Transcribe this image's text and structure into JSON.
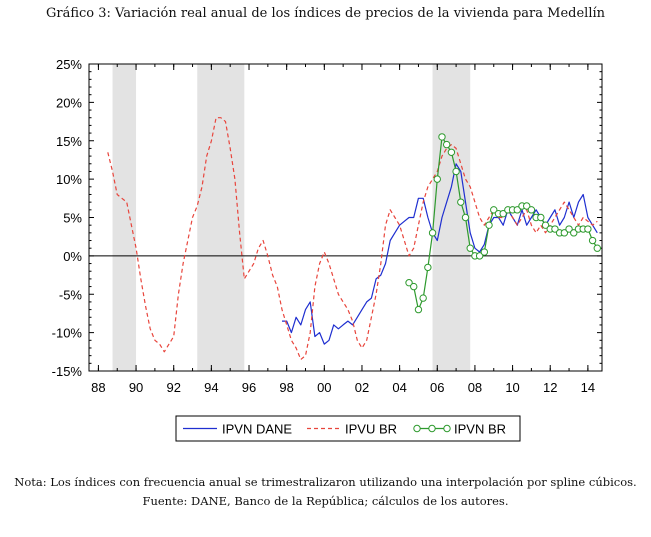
{
  "title": "Gráfico 3: Variación real anual de los índices de precios de la vivienda para Medellín",
  "note": "Nota: Los índices con frecuencia anual se trimestralizaron utilizando una interpolación por spline cúbicos.",
  "source": "Fuente: DANE, Banco de la República; cálculos de los autores.",
  "chart_data": {
    "type": "line",
    "title": "Gráfico 3: Variación real anual de los índices de precios de la vivienda para Medellín",
    "xlabel": "",
    "ylabel": "",
    "xlim": [
      1987.5,
      2014.75
    ],
    "ylim": [
      -15,
      25
    ],
    "yticks": [
      -15,
      -10,
      -5,
      0,
      5,
      10,
      15,
      20,
      25
    ],
    "ytick_labels": [
      "-15%",
      "-10%",
      "-5%",
      "0%",
      "5%",
      "10%",
      "15%",
      "20%",
      "25%"
    ],
    "xticks": [
      1988,
      1990,
      1992,
      1994,
      1996,
      1998,
      2000,
      2002,
      2004,
      2006,
      2008,
      2010,
      2012,
      2014
    ],
    "xtick_labels": [
      "88",
      "90",
      "92",
      "94",
      "96",
      "98",
      "00",
      "02",
      "04",
      "06",
      "08",
      "10",
      "12",
      "14"
    ],
    "shaded_periods": [
      [
        1988.75,
        1990.0
      ],
      [
        1993.25,
        1995.75
      ],
      [
        2005.75,
        2007.75
      ]
    ],
    "zero_line": true,
    "legend_position": "bottom-center",
    "series": [
      {
        "name": "IPVN DANE",
        "style": "solid",
        "color": "#1f2fd0",
        "x": [
          1997.75,
          1998.0,
          1998.25,
          1998.5,
          1998.75,
          1999.0,
          1999.25,
          1999.5,
          1999.75,
          2000.0,
          2000.25,
          2000.5,
          2000.75,
          2001.0,
          2001.25,
          2001.5,
          2001.75,
          2002.0,
          2002.25,
          2002.5,
          2002.75,
          2003.0,
          2003.25,
          2003.5,
          2003.75,
          2004.0,
          2004.25,
          2004.5,
          2004.75,
          2005.0,
          2005.25,
          2005.5,
          2005.75,
          2006.0,
          2006.25,
          2006.5,
          2006.75,
          2007.0,
          2007.25,
          2007.5,
          2007.75,
          2008.0,
          2008.25,
          2008.5,
          2008.75,
          2009.0,
          2009.25,
          2009.5,
          2009.75,
          2010.0,
          2010.25,
          2010.5,
          2010.75,
          2011.0,
          2011.25,
          2011.5,
          2011.75,
          2012.0,
          2012.25,
          2012.5,
          2012.75,
          2013.0,
          2013.25,
          2013.5,
          2013.75,
          2014.0,
          2014.25,
          2014.5
        ],
        "values": [
          -8.5,
          -8.5,
          -10,
          -8,
          -9,
          -7,
          -6,
          -10.5,
          -10,
          -11.5,
          -11,
          -9,
          -9.5,
          -9,
          -8.5,
          -9,
          -8,
          -7,
          -6,
          -5.5,
          -3,
          -2.5,
          -1,
          2,
          3,
          4,
          4.5,
          5,
          5,
          7.5,
          7.5,
          5,
          3,
          2,
          5,
          7,
          9,
          12,
          11,
          7,
          3,
          1,
          0.5,
          1.5,
          4,
          5,
          5,
          4,
          6,
          5,
          4,
          6,
          4,
          5,
          6,
          5,
          4,
          5,
          6,
          4,
          5,
          7,
          5,
          7,
          8,
          5,
          4,
          3
        ]
      },
      {
        "name": "IPVU BR",
        "style": "dashed",
        "color": "#e8453c",
        "x": [
          1988.5,
          1988.75,
          1989.0,
          1989.25,
          1989.5,
          1989.75,
          1990.0,
          1990.25,
          1990.5,
          1990.75,
          1991.0,
          1991.25,
          1991.5,
          1991.75,
          1992.0,
          1992.25,
          1992.5,
          1992.75,
          1993.0,
          1993.25,
          1993.5,
          1993.75,
          1994.0,
          1994.25,
          1994.5,
          1994.75,
          1995.0,
          1995.25,
          1995.5,
          1995.75,
          1996.0,
          1996.25,
          1996.5,
          1996.75,
          1997.0,
          1997.25,
          1997.5,
          1997.75,
          1998.0,
          1998.25,
          1998.5,
          1998.75,
          1999.0,
          1999.25,
          1999.5,
          1999.75,
          2000.0,
          2000.25,
          2000.5,
          2000.75,
          2001.0,
          2001.25,
          2001.5,
          2001.75,
          2002.0,
          2002.25,
          2002.5,
          2002.75,
          2003.0,
          2003.25,
          2003.5,
          2003.75,
          2004.0,
          2004.25,
          2004.5,
          2004.75,
          2005.0,
          2005.25,
          2005.5,
          2005.75,
          2006.0,
          2006.25,
          2006.5,
          2006.75,
          2007.0,
          2007.25,
          2007.5,
          2007.75,
          2008.0,
          2008.25,
          2008.5,
          2008.75,
          2009.0,
          2009.25,
          2009.5,
          2009.75,
          2010.0,
          2010.25,
          2010.5,
          2010.75,
          2011.0,
          2011.25,
          2011.5,
          2011.75,
          2012.0,
          2012.25,
          2012.5,
          2012.75,
          2013.0,
          2013.25,
          2013.5,
          2013.75,
          2014.0,
          2014.25,
          2014.5
        ],
        "values": [
          13.5,
          11,
          8,
          7.5,
          7,
          4,
          1,
          -3,
          -6.5,
          -9.5,
          -11,
          -11.5,
          -12.5,
          -11.5,
          -10.5,
          -5,
          -1,
          2,
          5,
          6.5,
          9,
          13,
          15,
          18,
          18,
          17.5,
          14,
          10,
          3,
          -3,
          -2,
          -1,
          1,
          2,
          0,
          -2.5,
          -4,
          -7,
          -9,
          -11,
          -12,
          -13.5,
          -13,
          -10,
          -4,
          -1,
          0.5,
          -1,
          -3,
          -5,
          -6,
          -7,
          -8.5,
          -11,
          -12,
          -11,
          -8,
          -5,
          -1,
          4,
          6,
          5,
          4,
          2,
          0,
          1,
          4,
          7,
          9,
          10,
          11,
          13,
          14,
          14.5,
          14,
          12,
          10,
          9,
          7,
          5,
          4,
          5,
          6,
          5,
          5,
          6,
          5,
          4,
          5,
          6,
          4,
          3,
          4,
          3,
          4,
          5,
          6,
          7,
          6,
          5,
          4,
          5,
          4.5,
          4,
          4.5
        ]
      },
      {
        "name": "IPVN BR",
        "style": "solid-circles",
        "color": "#2e9a2e",
        "x": [
          2004.5,
          2004.75,
          2005.0,
          2005.25,
          2005.5,
          2005.75,
          2006.0,
          2006.25,
          2006.5,
          2006.75,
          2007.0,
          2007.25,
          2007.5,
          2007.75,
          2008.0,
          2008.25,
          2008.5,
          2008.75,
          2009.0,
          2009.25,
          2009.5,
          2009.75,
          2010.0,
          2010.25,
          2010.5,
          2010.75,
          2011.0,
          2011.25,
          2011.5,
          2011.75,
          2012.0,
          2012.25,
          2012.5,
          2012.75,
          2013.0,
          2013.25,
          2013.5,
          2013.75,
          2014.0,
          2014.25,
          2014.5
        ],
        "values": [
          -3.5,
          -4,
          -7,
          -5.5,
          -1.5,
          3,
          10,
          15.5,
          14.5,
          13.5,
          11,
          7,
          5,
          1,
          0,
          0,
          0.5,
          4,
          6,
          5.5,
          5.5,
          6,
          6,
          6,
          6.5,
          6.5,
          6,
          5,
          5,
          4,
          3.5,
          3.5,
          3,
          3,
          3.5,
          3,
          3.5,
          3.5,
          3.5,
          2,
          1
        ]
      }
    ]
  }
}
